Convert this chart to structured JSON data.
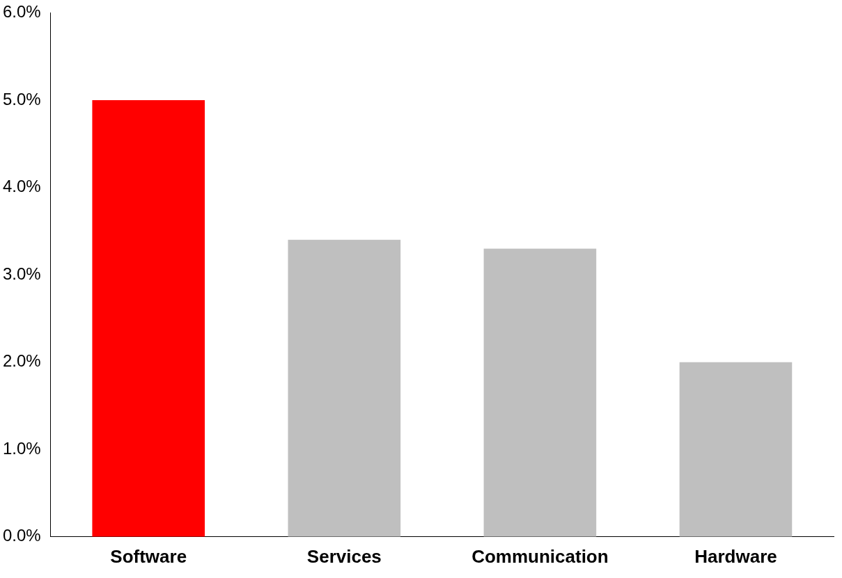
{
  "chart_data": {
    "type": "bar",
    "categories": [
      "Software",
      "Services",
      "Communication",
      "Hardware"
    ],
    "values": [
      5.0,
      3.4,
      3.3,
      2.0
    ],
    "colors": [
      "#ff0000",
      "#bfbfbf",
      "#bfbfbf",
      "#bfbfbf"
    ],
    "ylim": [
      0,
      6
    ],
    "yticks": [
      {
        "value": 0,
        "label": "0.0%"
      },
      {
        "value": 1,
        "label": "1.0%"
      },
      {
        "value": 2,
        "label": "2.0%"
      },
      {
        "value": 3,
        "label": "3.0%"
      },
      {
        "value": 4,
        "label": "4.0%"
      },
      {
        "value": 5,
        "label": "5.0%"
      },
      {
        "value": 6,
        "label": "6.0%"
      }
    ],
    "grid": false,
    "legend": false
  }
}
